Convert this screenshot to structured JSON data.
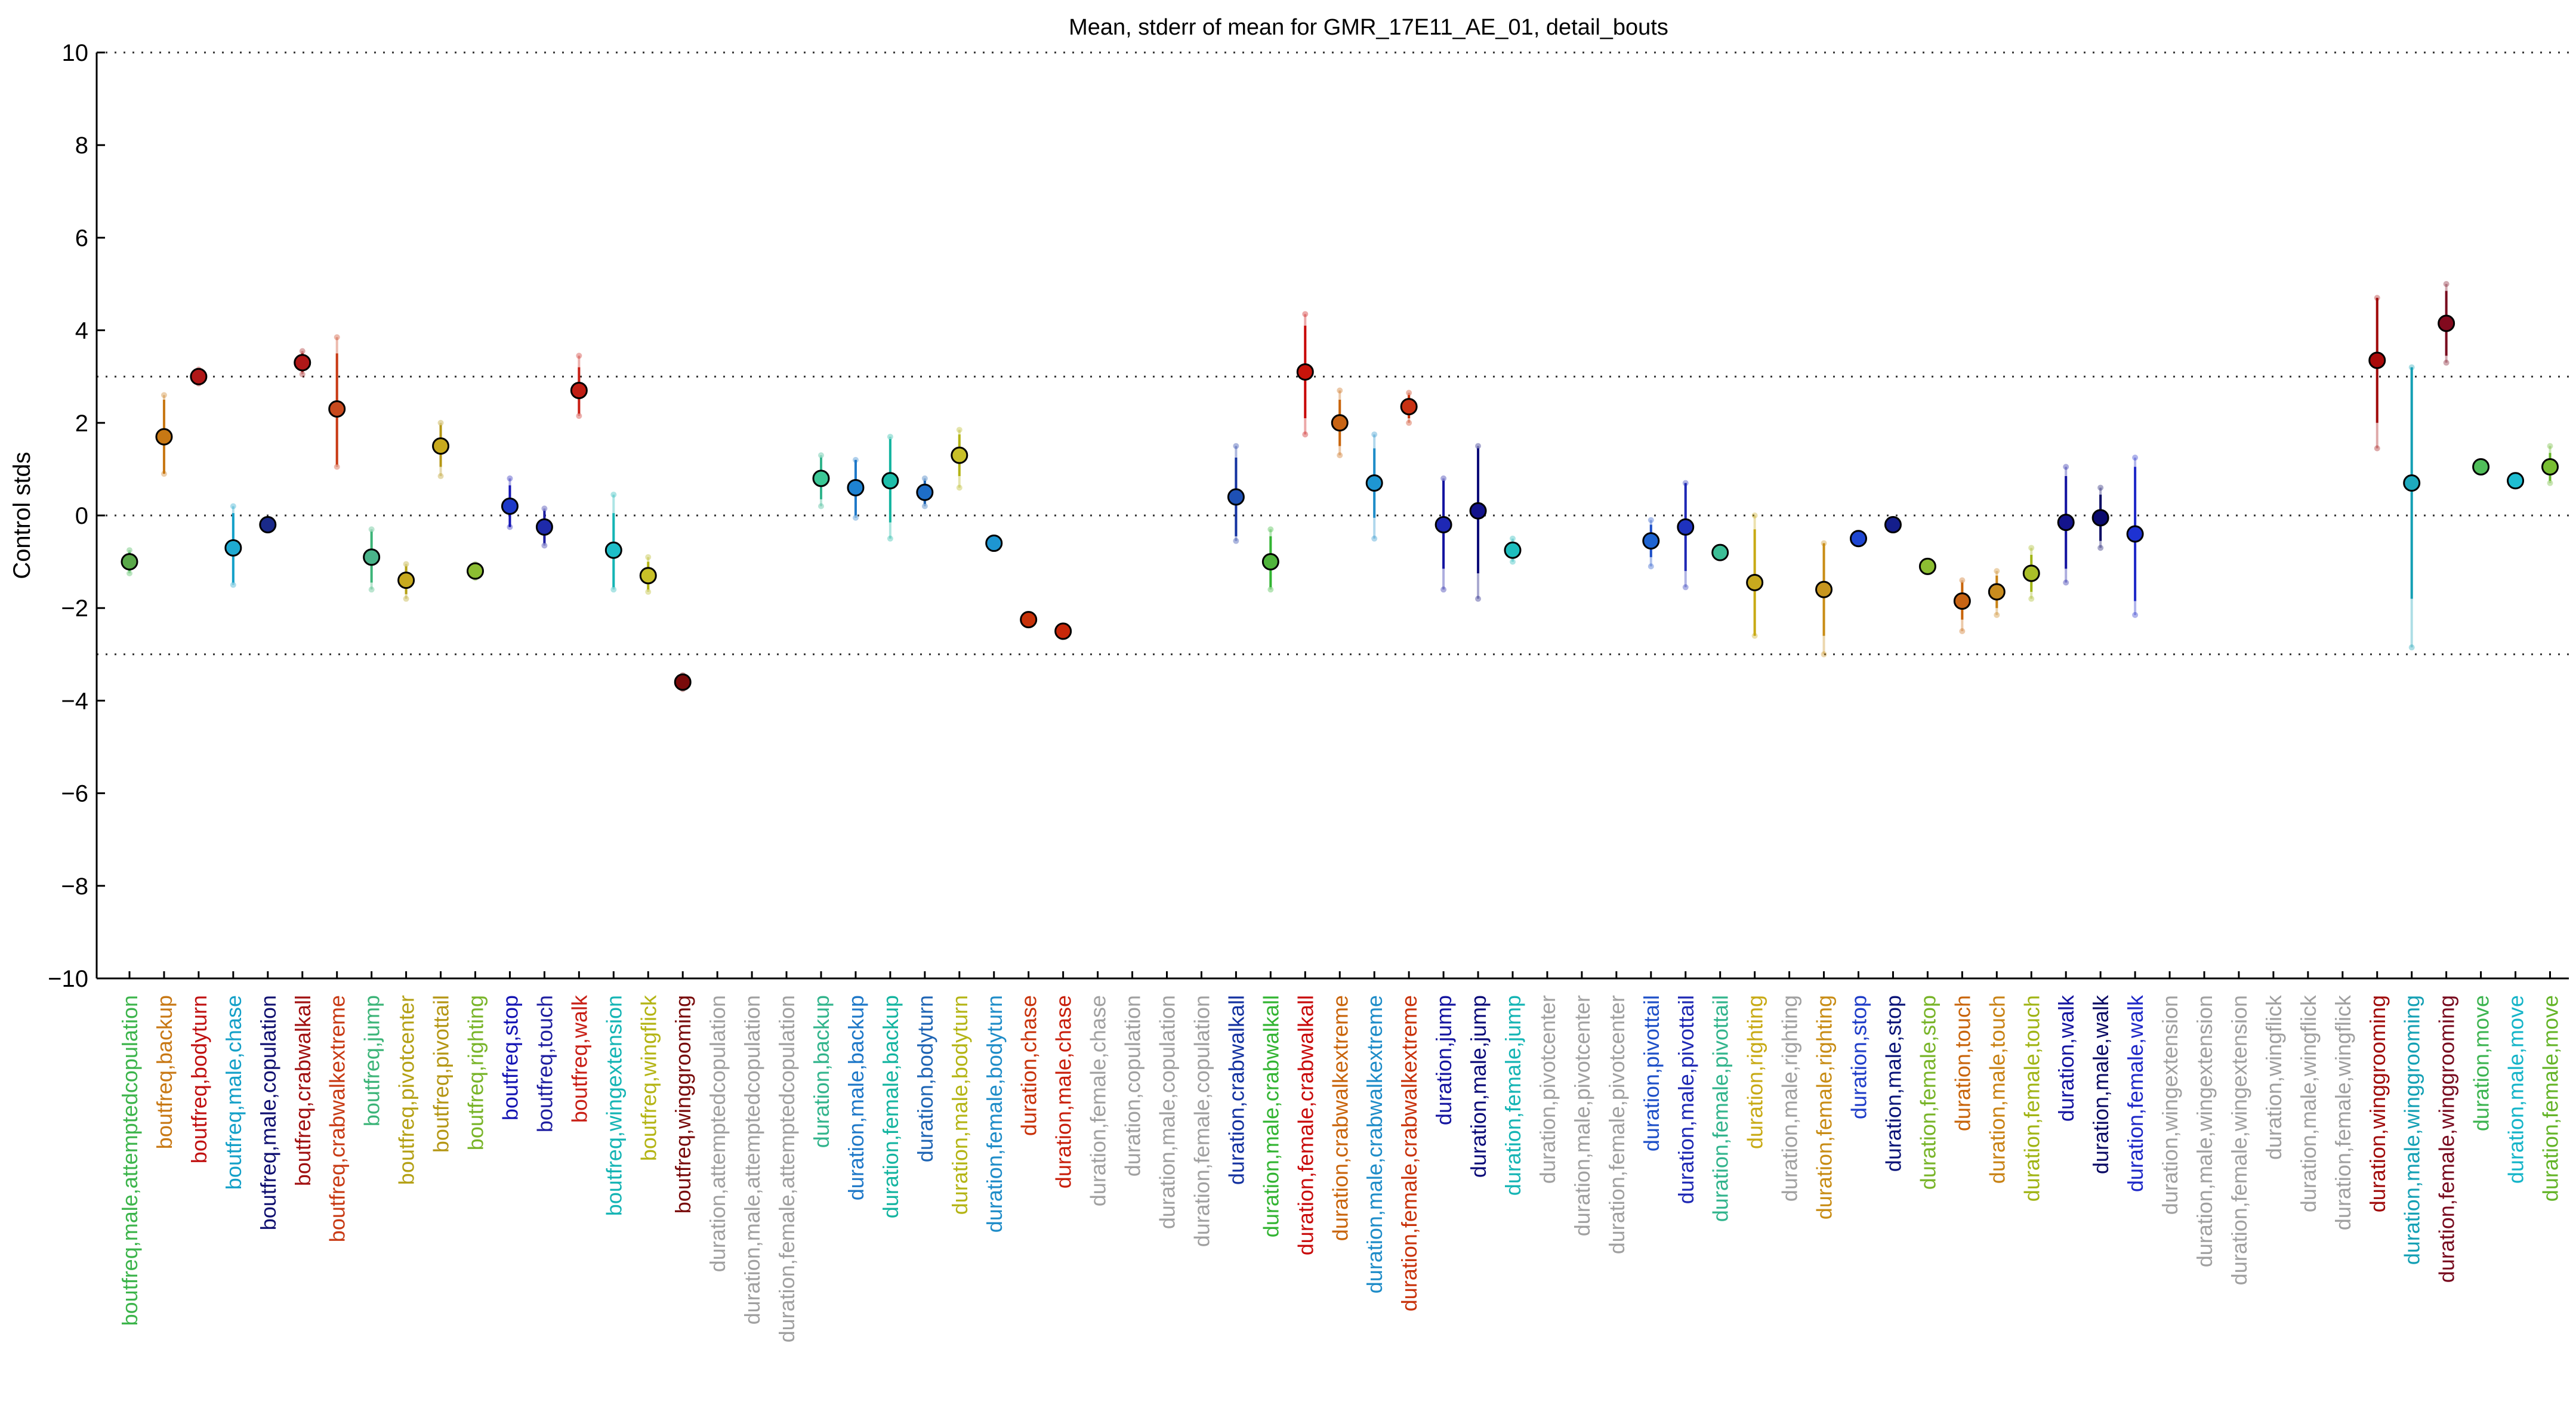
{
  "chart_data": {
    "type": "scatter",
    "title": "Mean, stderr of mean for GMR_17E11_AE_01, detail_bouts",
    "xlabel": "",
    "ylabel": "Control stds",
    "ylim": [
      -10,
      10
    ],
    "yticks": [
      10,
      8,
      6,
      4,
      2,
      0,
      -2,
      -4,
      -6,
      -8,
      -10
    ],
    "reference_lines": [
      10,
      3,
      0,
      -3,
      -10
    ],
    "grid": false,
    "categories": [
      {
        "label": "boutfreq,male,attemptedcopulation",
        "color": "#3cb44b",
        "mean": -1.0,
        "sem": 0.2,
        "range": [
          -1.25,
          -0.75
        ],
        "marker": "#5aa84a"
      },
      {
        "label": "boutfreq,backup",
        "color": "#c87814",
        "mean": 1.7,
        "sem": 0.8,
        "range": [
          0.9,
          2.6
        ],
        "marker": "#c87814"
      },
      {
        "label": "boutfreq,bodyturn",
        "color": "#c01010",
        "mean": 3.0,
        "sem": 0.12,
        "range": [
          2.85,
          3.15
        ],
        "marker": "#b01818"
      },
      {
        "label": "boutfreq,male,chase",
        "color": "#14a0c8",
        "mean": -0.7,
        "sem": 0.75,
        "range": [
          -1.5,
          0.2
        ],
        "marker": "#1eaad2"
      },
      {
        "label": "boutfreq,male,copulation",
        "color": "#101070",
        "mean": -0.2,
        "sem": 0.05,
        "range": [
          -0.25,
          -0.15
        ],
        "marker": "#1a2a8a"
      },
      {
        "label": "boutfreq,crabwalkall",
        "color": "#a01010",
        "mean": 3.3,
        "sem": 0.2,
        "range": [
          3.05,
          3.55
        ],
        "marker": "#b01818"
      },
      {
        "label": "boutfreq,crabwalkextreme",
        "color": "#c83a14",
        "mean": 2.3,
        "sem": 1.2,
        "range": [
          1.05,
          3.85
        ],
        "marker": "#c84a1e"
      },
      {
        "label": "boutfreq,jump",
        "color": "#3cb478",
        "mean": -0.9,
        "sem": 0.55,
        "range": [
          -1.6,
          -0.3
        ],
        "marker": "#4ab48a"
      },
      {
        "label": "boutfreq,pivotcenter",
        "color": "#b4a014",
        "mean": -1.4,
        "sem": 0.3,
        "range": [
          -1.8,
          -1.05
        ],
        "marker": "#c8aa1e"
      },
      {
        "label": "boutfreq,pivottail",
        "color": "#b49614",
        "mean": 1.5,
        "sem": 0.45,
        "range": [
          0.85,
          2.0
        ],
        "marker": "#c8aa1e"
      },
      {
        "label": "boutfreq,righting",
        "color": "#78b428",
        "mean": -1.2,
        "sem": 0.1,
        "range": [
          -1.35,
          -1.05
        ],
        "marker": "#8cbe32"
      },
      {
        "label": "boutfreq,stop",
        "color": "#1414b4",
        "mean": 0.2,
        "sem": 0.45,
        "range": [
          -0.25,
          0.8
        ],
        "marker": "#1e3ac8"
      },
      {
        "label": "boutfreq,touch",
        "color": "#1e1ea0",
        "mean": -0.25,
        "sem": 0.35,
        "range": [
          -0.65,
          0.15
        ],
        "marker": "#1e2aaa"
      },
      {
        "label": "boutfreq,walk",
        "color": "#c81e14",
        "mean": 2.7,
        "sem": 0.5,
        "range": [
          2.15,
          3.45
        ],
        "marker": "#c01e14"
      },
      {
        "label": "boutfreq,wingextension",
        "color": "#14b4b4",
        "mean": -0.75,
        "sem": 0.8,
        "range": [
          -1.6,
          0.45
        ],
        "marker": "#1ebec8"
      },
      {
        "label": "boutfreq,wingflick",
        "color": "#b4b414",
        "mean": -1.3,
        "sem": 0.3,
        "range": [
          -1.65,
          -0.9
        ],
        "marker": "#c8c028"
      },
      {
        "label": "boutfreq,winggrooming",
        "color": "#780a0a",
        "mean": -3.6,
        "sem": 0.1,
        "range": [
          -3.75,
          -3.45
        ],
        "marker": "#7a0a0a"
      },
      {
        "label": "duration,attemptedcopulation",
        "color": "#a0a0a0",
        "mean": null
      },
      {
        "label": "duration,male,attemptedcopulation",
        "color": "#a0a0a0",
        "mean": null
      },
      {
        "label": "duration,female,attemptedcopulation",
        "color": "#a0a0a0",
        "mean": null
      },
      {
        "label": "duration,backup",
        "color": "#32b48c",
        "mean": 0.8,
        "sem": 0.45,
        "range": [
          0.2,
          1.3
        ],
        "marker": "#3cc896"
      },
      {
        "label": "duration,male,backup",
        "color": "#1e78c8",
        "mean": 0.6,
        "sem": 0.6,
        "range": [
          -0.05,
          1.2
        ],
        "marker": "#1e82d2"
      },
      {
        "label": "duration,female,backup",
        "color": "#14b4a0",
        "mean": 0.75,
        "sem": 0.9,
        "range": [
          -0.5,
          1.7
        ],
        "marker": "#1ebeaa"
      },
      {
        "label": "duration,bodyturn",
        "color": "#1e64b4",
        "mean": 0.5,
        "sem": 0.25,
        "range": [
          0.2,
          0.8
        ],
        "marker": "#1e6ec8"
      },
      {
        "label": "duration,male,bodyturn",
        "color": "#b4b414",
        "mean": 1.3,
        "sem": 0.45,
        "range": [
          0.6,
          1.85
        ],
        "marker": "#c8c028"
      },
      {
        "label": "duration,female,bodyturn",
        "color": "#1e8cc8",
        "mean": -0.6,
        "sem": 0.05,
        "range": [
          -0.65,
          -0.55
        ],
        "marker": "#1e96d2"
      },
      {
        "label": "duration,chase",
        "color": "#c8320a",
        "mean": -2.25,
        "sem": 0.05,
        "range": [
          -2.3,
          -2.2
        ],
        "marker": "#c8320a"
      },
      {
        "label": "duration,male,chase",
        "color": "#c81e0a",
        "mean": -2.5,
        "sem": 0.05,
        "range": [
          -2.55,
          -2.45
        ],
        "marker": "#c8280a"
      },
      {
        "label": "duration,female,chase",
        "color": "#a0a0a0",
        "mean": null
      },
      {
        "label": "duration,copulation",
        "color": "#a0a0a0",
        "mean": null
      },
      {
        "label": "duration,male,copulation",
        "color": "#a0a0a0",
        "mean": null
      },
      {
        "label": "duration,female,copulation",
        "color": "#a0a0a0",
        "mean": null
      },
      {
        "label": "duration,crabwalkall",
        "color": "#1432a0",
        "mean": 0.4,
        "sem": 0.85,
        "range": [
          -0.55,
          1.5
        ],
        "marker": "#1e50b4"
      },
      {
        "label": "duration,male,crabwalkall",
        "color": "#32b432",
        "mean": -1.0,
        "sem": 0.55,
        "range": [
          -1.6,
          -0.3
        ],
        "marker": "#50b43c"
      },
      {
        "label": "duration,female,crabwalkall",
        "color": "#c80a0a",
        "mean": 3.1,
        "sem": 1.0,
        "range": [
          1.75,
          4.35
        ],
        "marker": "#c8140a"
      },
      {
        "label": "duration,crabwalkextreme",
        "color": "#c8640a",
        "mean": 2.0,
        "sem": 0.5,
        "range": [
          1.3,
          2.7
        ],
        "marker": "#c86414"
      },
      {
        "label": "duration,male,crabwalkextreme",
        "color": "#1e8cc8",
        "mean": 0.7,
        "sem": 0.75,
        "range": [
          -0.5,
          1.75
        ],
        "marker": "#1e96d2"
      },
      {
        "label": "duration,female,crabwalkextreme",
        "color": "#c8320a",
        "mean": 2.35,
        "sem": 0.25,
        "range": [
          2.0,
          2.65
        ],
        "marker": "#c83214"
      },
      {
        "label": "duration,jump",
        "color": "#1414a0",
        "mean": -0.2,
        "sem": 0.95,
        "range": [
          -1.6,
          0.8
        ],
        "marker": "#1e28b4"
      },
      {
        "label": "duration,male,jump",
        "color": "#0a0a78",
        "mean": 0.1,
        "sem": 1.35,
        "range": [
          -1.8,
          1.5
        ],
        "marker": "#14148c"
      },
      {
        "label": "duration,female,jump",
        "color": "#14b4b4",
        "mean": -0.75,
        "sem": 0.15,
        "range": [
          -1.0,
          -0.5
        ],
        "marker": "#1ebebe"
      },
      {
        "label": "duration,pivotcenter",
        "color": "#a0a0a0",
        "mean": null
      },
      {
        "label": "duration,male,pivotcenter",
        "color": "#a0a0a0",
        "mean": null
      },
      {
        "label": "duration,female,pivotcenter",
        "color": "#a0a0a0",
        "mean": null
      },
      {
        "label": "duration,pivottail",
        "color": "#1e50c8",
        "mean": -0.55,
        "sem": 0.35,
        "range": [
          -1.1,
          -0.1
        ],
        "marker": "#1e64d2"
      },
      {
        "label": "duration,male,pivottail",
        "color": "#1e28b4",
        "mean": -0.25,
        "sem": 0.95,
        "range": [
          -1.55,
          0.7
        ],
        "marker": "#1e32be"
      },
      {
        "label": "duration,female,pivottail",
        "color": "#32b48c",
        "mean": -0.8,
        "sem": 0.05,
        "range": [
          -0.85,
          -0.75
        ],
        "marker": "#3cbe96"
      },
      {
        "label": "duration,righting",
        "color": "#c8aa14",
        "mean": -1.45,
        "sem": 1.15,
        "range": [
          -2.6,
          0.0
        ],
        "marker": "#c8aa1e"
      },
      {
        "label": "duration,male,righting",
        "color": "#a0a0a0",
        "mean": null
      },
      {
        "label": "duration,female,righting",
        "color": "#c88c14",
        "mean": -1.6,
        "sem": 1.0,
        "range": [
          -3.0,
          -0.6
        ],
        "marker": "#c8961e"
      },
      {
        "label": "duration,stop",
        "color": "#1e3cc8",
        "mean": -0.5,
        "sem": 0.05,
        "range": [
          -0.55,
          -0.45
        ],
        "marker": "#1e46d2"
      },
      {
        "label": "duration,male,stop",
        "color": "#0a1478",
        "mean": -0.2,
        "sem": 0.05,
        "range": [
          -0.25,
          -0.15
        ],
        "marker": "#141e8c"
      },
      {
        "label": "duration,female,stop",
        "color": "#78b428",
        "mean": -1.1,
        "sem": 0.05,
        "range": [
          -1.15,
          -1.05
        ],
        "marker": "#8cbe32"
      },
      {
        "label": "duration,touch",
        "color": "#c8640a",
        "mean": -1.85,
        "sem": 0.4,
        "range": [
          -2.5,
          -1.4
        ],
        "marker": "#c86414"
      },
      {
        "label": "duration,male,touch",
        "color": "#c88214",
        "mean": -1.65,
        "sem": 0.35,
        "range": [
          -2.15,
          -1.2
        ],
        "marker": "#c88c1e"
      },
      {
        "label": "duration,female,touch",
        "color": "#a0b414",
        "mean": -1.25,
        "sem": 0.4,
        "range": [
          -1.8,
          -0.7
        ],
        "marker": "#aabe28"
      },
      {
        "label": "duration,walk",
        "color": "#1414a0",
        "mean": -0.15,
        "sem": 1.0,
        "range": [
          -1.45,
          1.05
        ],
        "marker": "#14148c"
      },
      {
        "label": "duration,male,walk",
        "color": "#0a0a64",
        "mean": -0.05,
        "sem": 0.5,
        "range": [
          -0.7,
          0.6
        ],
        "marker": "#0a0a6e"
      },
      {
        "label": "duration,female,walk",
        "color": "#1e28c8",
        "mean": -0.4,
        "sem": 1.45,
        "range": [
          -2.15,
          1.25
        ],
        "marker": "#1e32d2"
      },
      {
        "label": "duration,wingextension",
        "color": "#a0a0a0",
        "mean": null
      },
      {
        "label": "duration,male,wingextension",
        "color": "#a0a0a0",
        "mean": null
      },
      {
        "label": "duration,female,wingextension",
        "color": "#a0a0a0",
        "mean": null
      },
      {
        "label": "duration,wingflick",
        "color": "#a0a0a0",
        "mean": null
      },
      {
        "label": "duration,male,wingflick",
        "color": "#a0a0a0",
        "mean": null
      },
      {
        "label": "duration,female,wingflick",
        "color": "#a0a0a0",
        "mean": null
      },
      {
        "label": "duration,winggrooming",
        "color": "#a00a0a",
        "mean": 3.35,
        "sem": 1.35,
        "range": [
          1.45,
          4.7
        ],
        "marker": "#aa0a0a"
      },
      {
        "label": "duration,male,winggrooming",
        "color": "#14a0b4",
        "mean": 0.7,
        "sem": 2.5,
        "range": [
          -2.85,
          3.2
        ],
        "marker": "#1eaabe"
      },
      {
        "label": "duration,female,winggrooming",
        "color": "#780a1e",
        "mean": 4.15,
        "sem": 0.7,
        "range": [
          3.3,
          5.0
        ],
        "marker": "#820a1e"
      },
      {
        "label": "duration,move",
        "color": "#3cb450",
        "mean": 1.05,
        "sem": 0.05,
        "range": [
          1.0,
          1.1
        ],
        "marker": "#50be5a"
      },
      {
        "label": "duration,male,move",
        "color": "#14b4c8",
        "mean": 0.75,
        "sem": 0.05,
        "range": [
          0.7,
          0.8
        ],
        "marker": "#1ebed2"
      },
      {
        "label": "duration,female,move",
        "color": "#64b428",
        "mean": 1.05,
        "sem": 0.3,
        "range": [
          0.7,
          1.5
        ],
        "marker": "#78be32"
      }
    ]
  }
}
